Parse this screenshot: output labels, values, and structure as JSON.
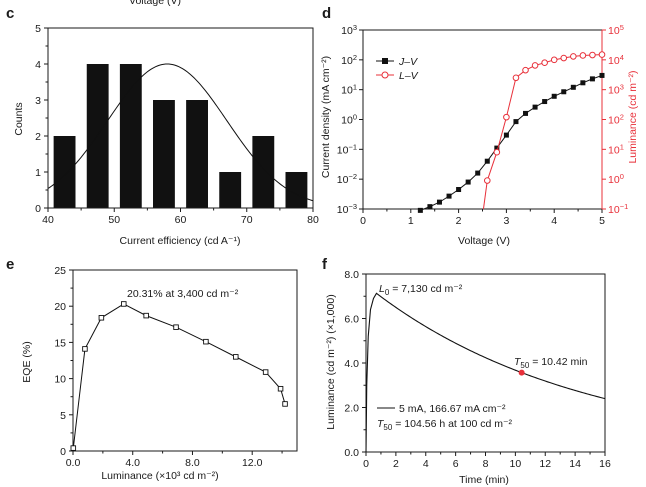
{
  "colors": {
    "axis": "#1a1a1a",
    "black_series": "#111111",
    "red_series": "#e8303a"
  },
  "chart_data": [
    {
      "panel": "c",
      "type": "bar",
      "x_tick_labels": [
        "40",
        "50",
        "60",
        "70",
        "80"
      ],
      "y_tick_labels": [
        "0",
        "1",
        "2",
        "3",
        "4",
        "5"
      ],
      "xlabel": "Current efficiency (cd A⁻¹)",
      "ylabel": "Counts",
      "xlim": [
        40,
        80
      ],
      "ylim": [
        0,
        5
      ],
      "bar_width": 3.3,
      "bars": [
        {
          "x": 42.5,
          "y": 2
        },
        {
          "x": 47.5,
          "y": 4
        },
        {
          "x": 52.5,
          "y": 4
        },
        {
          "x": 57.5,
          "y": 3
        },
        {
          "x": 62.5,
          "y": 3
        },
        {
          "x": 67.5,
          "y": 1
        },
        {
          "x": 72.5,
          "y": 2
        },
        {
          "x": 77.5,
          "y": 1
        }
      ],
      "fit_curve": {
        "type": "gaussian",
        "center": 58,
        "amplitude": 4,
        "sigma": 9
      }
    },
    {
      "panel": "d",
      "type": "line",
      "xlabel": "Voltage (V)",
      "ylabel_left": "Current density (mA cm⁻²)",
      "ylabel_right": "Luminance (cd m⁻²)",
      "x_tick_labels": [
        "0",
        "1",
        "2",
        "3",
        "4",
        "5"
      ],
      "xlim": [
        0,
        5
      ],
      "y_left_log_range": [
        -3,
        3
      ],
      "y_right_log_range": [
        -1,
        5
      ],
      "y_left_tick_labels": [
        {
          "base": "10",
          "exp": "−3"
        },
        {
          "base": "10",
          "exp": "−2"
        },
        {
          "base": "10",
          "exp": "−1"
        },
        {
          "base": "10",
          "exp": "0"
        },
        {
          "base": "10",
          "exp": "1"
        },
        {
          "base": "10",
          "exp": "2"
        },
        {
          "base": "10",
          "exp": "3"
        }
      ],
      "y_right_tick_labels": [
        {
          "base": "10",
          "exp": "−1"
        },
        {
          "base": "10",
          "exp": "0"
        },
        {
          "base": "10",
          "exp": "1"
        },
        {
          "base": "10",
          "exp": "2"
        },
        {
          "base": "10",
          "exp": "3"
        },
        {
          "base": "10",
          "exp": "4"
        },
        {
          "base": "10",
          "exp": "5"
        }
      ],
      "series": [
        {
          "name": "J–V",
          "axis": "left",
          "marker": "filled-square",
          "x": [
            1.2,
            1.4,
            1.6,
            1.8,
            2.0,
            2.2,
            2.4,
            2.6,
            2.8,
            3.0,
            3.2,
            3.4,
            3.6,
            3.8,
            4.0,
            4.2,
            4.4,
            4.6,
            4.8,
            5.0
          ],
          "y": [
            0.0009,
            0.0012,
            0.0017,
            0.0027,
            0.0045,
            0.008,
            0.016,
            0.04,
            0.11,
            0.3,
            0.85,
            1.6,
            2.6,
            4.0,
            6.0,
            8.5,
            12,
            17,
            23,
            30
          ]
        },
        {
          "name": "L–V",
          "axis": "right",
          "marker": "open-circle",
          "x": [
            2.6,
            2.8,
            3.0,
            3.2,
            3.4,
            3.6,
            3.8,
            4.0,
            4.2,
            4.4,
            4.6,
            4.8,
            5.0
          ],
          "y": [
            0.9,
            8,
            120,
            2500,
            4500,
            6500,
            8000,
            10000,
            11500,
            13000,
            14000,
            14500,
            15000
          ]
        }
      ]
    },
    {
      "panel": "e",
      "type": "line",
      "xlabel": "Luminance (×10³ cd m⁻²)",
      "ylabel": "EQE (%)",
      "x_tick_labels": [
        "0.0",
        "4.0",
        "8.0",
        "12.0"
      ],
      "y_tick_labels": [
        "0",
        "5",
        "10",
        "15",
        "20",
        "25"
      ],
      "xlim": [
        0,
        15
      ],
      "ylim": [
        0,
        25
      ],
      "annotation": "20.31% at 3,400 cd m⁻²",
      "series": [
        {
          "marker": "open-square",
          "x": [
            0.02,
            0.8,
            1.9,
            3.4,
            4.9,
            6.9,
            8.9,
            10.9,
            12.9,
            13.9,
            14.2
          ],
          "y": [
            0.4,
            14.1,
            18.4,
            20.31,
            18.7,
            17.1,
            15.1,
            13.0,
            10.9,
            8.6,
            6.5
          ]
        }
      ]
    },
    {
      "panel": "f",
      "type": "line",
      "xlabel": "Time (min)",
      "ylabel": "Luminance (cd m⁻²) (×1,000)",
      "x_tick_labels": [
        "0",
        "2",
        "4",
        "6",
        "8",
        "10",
        "12",
        "14",
        "16"
      ],
      "y_tick_labels": [
        "0.0",
        "2.0",
        "4.0",
        "6.0",
        "8.0"
      ],
      "xlim": [
        0,
        16
      ],
      "ylim": [
        0,
        8
      ],
      "annotation_L0": "7,130 cd m⁻²",
      "annotation_T50": "10.42 min",
      "legend_entry": "5 mA, 166.67 mA cm⁻²",
      "annotation_T50_extrap": "104.56 h at 100 cd m⁻²",
      "series": [
        {
          "x": [
            0,
            0.05,
            0.15,
            0.3,
            0.5,
            0.7,
            1.0,
            1.5,
            2,
            3,
            4,
            5,
            6,
            7,
            8,
            9,
            10,
            10.42,
            11,
            12,
            13,
            14,
            15,
            16
          ],
          "y": [
            0,
            3.0,
            5.2,
            6.4,
            6.9,
            7.13,
            7.05,
            6.85,
            6.62,
            6.22,
            5.85,
            5.5,
            5.17,
            4.86,
            4.57,
            4.3,
            4.04,
            3.565,
            3.8,
            3.56,
            3.32,
            3.08,
            2.84,
            2.3
          ]
        }
      ],
      "marker_point": {
        "x": 10.42,
        "y": 3.565
      }
    }
  ]
}
